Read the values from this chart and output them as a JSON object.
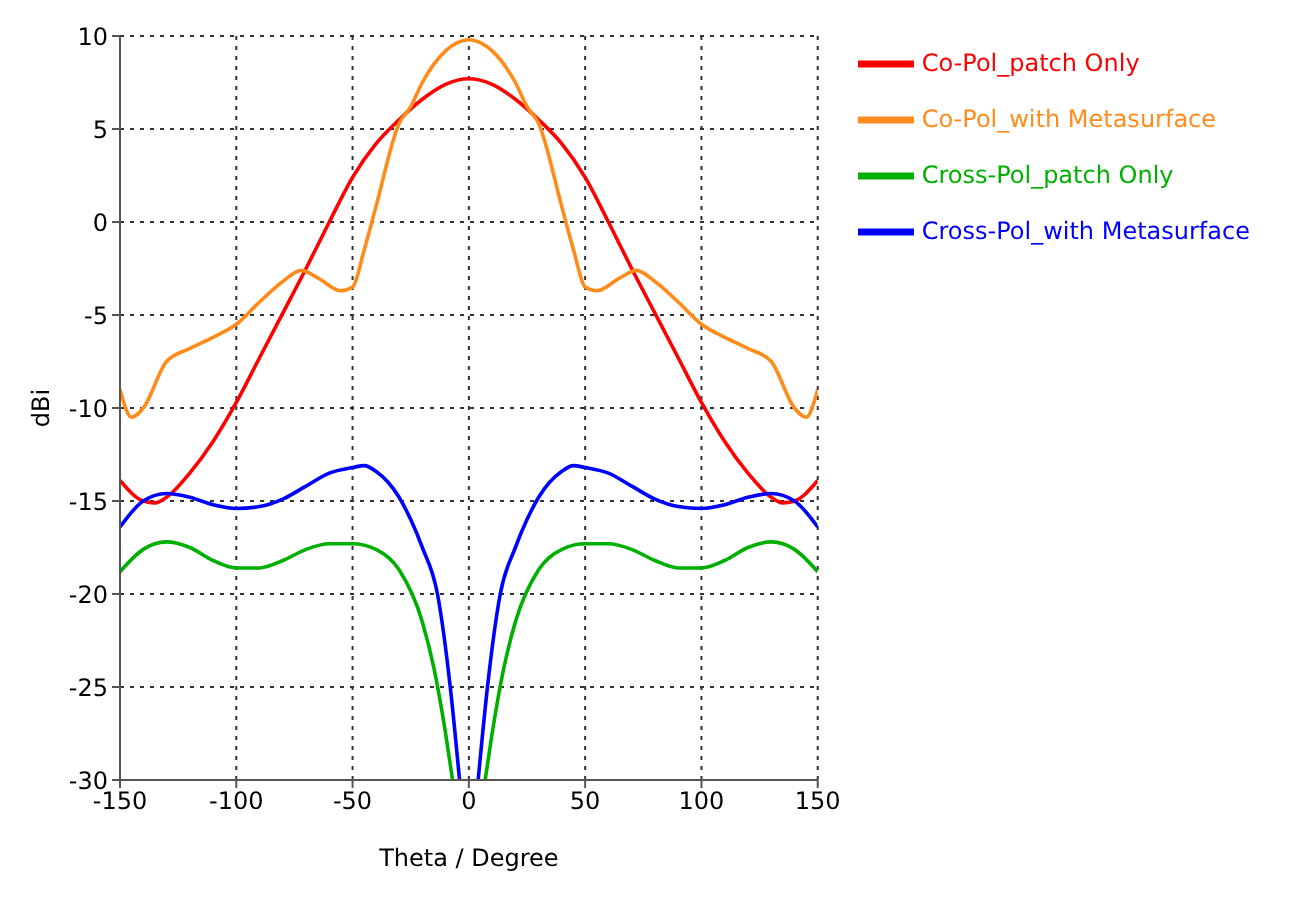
{
  "chart_data": {
    "type": "line",
    "xlabel": "Theta / Degree",
    "ylabel": "dBi",
    "xlim": [
      -150,
      150
    ],
    "ylim": [
      -30,
      10
    ],
    "xticks": [
      -150,
      -100,
      -50,
      0,
      50,
      100,
      150
    ],
    "yticks": [
      -30,
      -25,
      -20,
      -15,
      -10,
      -5,
      0,
      5,
      10
    ],
    "grid": true,
    "legend": "right",
    "marker": "none",
    "line_style": "solid",
    "series": [
      {
        "name": "Co-Pol_patch Only",
        "color": "#ff0000",
        "x": [
          -150,
          -140,
          -135,
          -130,
          -120,
          -110,
          -100,
          -90,
          -80,
          -70,
          -60,
          -50,
          -40,
          -30,
          -20,
          -10,
          0,
          10,
          20,
          30,
          40,
          50,
          60,
          70,
          80,
          90,
          100,
          110,
          120,
          130,
          135,
          140,
          150
        ],
        "values": [
          -13.9,
          -15,
          -15.1,
          -14.8,
          -13.5,
          -11.8,
          -9.7,
          -7.3,
          -4.9,
          -2.5,
          0,
          2.4,
          4.2,
          5.5,
          6.6,
          7.4,
          7.7,
          7.4,
          6.6,
          5.5,
          4.2,
          2.4,
          0,
          -2.5,
          -4.9,
          -7.3,
          -9.7,
          -11.8,
          -13.5,
          -14.8,
          -15.1,
          -15,
          -13.9
        ]
      },
      {
        "name": "Co-Pol_with Metasurface",
        "color": "#ff8c1a",
        "x": [
          -150,
          -145,
          -140,
          -130,
          -120,
          -110,
          -100,
          -90,
          -80,
          -72,
          -65,
          -55,
          -50,
          -45,
          -40,
          -30,
          -25,
          -20,
          -10,
          0,
          10,
          20,
          25,
          30,
          40,
          45,
          50,
          55,
          65,
          72,
          80,
          90,
          100,
          110,
          120,
          130,
          140,
          145,
          150
        ],
        "values": [
          -9,
          -10.5,
          -10,
          -7.5,
          -6.8,
          -6.2,
          -5.5,
          -4.3,
          -3.2,
          -2.6,
          -3,
          -3.7,
          -3.5,
          -1.5,
          0.8,
          5.3,
          6.2,
          7.5,
          9.2,
          9.8,
          9.2,
          7.5,
          6.2,
          5.3,
          0.8,
          -1.5,
          -3.5,
          -3.7,
          -3,
          -2.6,
          -3.2,
          -4.3,
          -5.5,
          -6.2,
          -6.8,
          -7.5,
          -10,
          -10.5,
          -9
        ]
      },
      {
        "name": "Cross-Pol_patch Only",
        "color": "#00b000",
        "x": [
          -150,
          -140,
          -130,
          -120,
          -110,
          -100,
          -90,
          -80,
          -70,
          -60,
          -50,
          -40,
          -30,
          -20,
          -15,
          -10,
          -7,
          0,
          7,
          10,
          15,
          20,
          30,
          40,
          50,
          60,
          70,
          80,
          90,
          100,
          110,
          120,
          130,
          140,
          150
        ],
        "values": [
          -18.8,
          -17.6,
          -17.2,
          -17.5,
          -18.2,
          -18.6,
          -18.6,
          -18.2,
          -17.6,
          -17.3,
          -17.3,
          -17.6,
          -18.7,
          -21.5,
          -24,
          -27.5,
          -30,
          null,
          -30,
          -27.5,
          -24,
          -21.5,
          -18.7,
          -17.6,
          -17.3,
          -17.3,
          -17.6,
          -18.2,
          -18.6,
          -18.6,
          -18.2,
          -17.5,
          -17.2,
          -17.6,
          -18.8
        ]
      },
      {
        "name": "Cross-Pol_with Metasurface",
        "color": "#0000ff",
        "x": [
          -150,
          -140,
          -130,
          -120,
          -110,
          -100,
          -90,
          -80,
          -70,
          -60,
          -50,
          -45,
          -40,
          -30,
          -25,
          -20,
          -13.5,
          -8,
          -4,
          0,
          4,
          8,
          13.5,
          20,
          25,
          30,
          40,
          45,
          50,
          60,
          70,
          80,
          90,
          100,
          110,
          120,
          130,
          140,
          150
        ],
        "values": [
          -16.4,
          -15,
          -14.6,
          -14.8,
          -15.2,
          -15.4,
          -15.3,
          -14.9,
          -14.2,
          -13.5,
          -13.2,
          -13.1,
          -13.4,
          -14.8,
          -16,
          -17.5,
          -20,
          -25,
          -30,
          null,
          -30,
          -25,
          -20,
          -17.5,
          -16,
          -14.8,
          -13.4,
          -13.1,
          -13.2,
          -13.5,
          -14.2,
          -14.9,
          -15.3,
          -15.4,
          -15.2,
          -14.8,
          -14.6,
          -15,
          -16.4
        ]
      }
    ]
  }
}
